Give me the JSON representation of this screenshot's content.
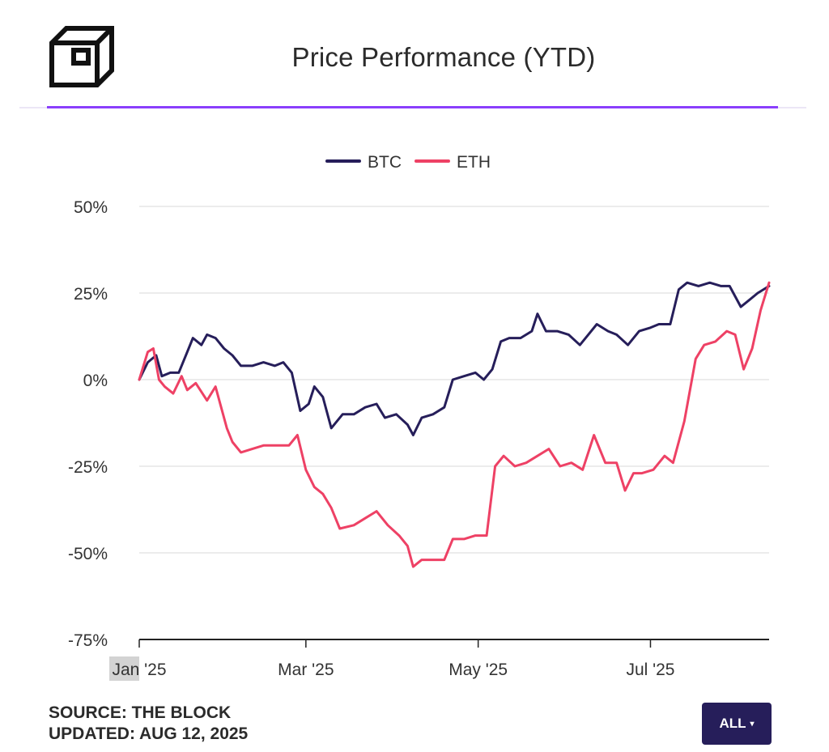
{
  "header": {
    "title": "Price Performance (YTD)"
  },
  "footer": {
    "source": "SOURCE: THE BLOCK",
    "updated": "UPDATED: AUG 12, 2025"
  },
  "range_button": {
    "label": "ALL",
    "caret": "▾"
  },
  "logo": {
    "icon": "the-block-cube-logo"
  },
  "colors": {
    "btc": "#261e5a",
    "eth": "#ee4165",
    "accent": "#8a3ffc",
    "grid": "#e6e6e6",
    "axis": "#222222"
  },
  "chart_data": {
    "type": "line",
    "title": "Price Performance (YTD)",
    "y_unit": "%",
    "ylim": [
      -75,
      50
    ],
    "y_ticks": [
      50,
      25,
      0,
      -25,
      -50,
      -75
    ],
    "y_tick_labels": [
      "50%",
      "25%",
      "0%",
      "-25%",
      "-50%",
      "-75%"
    ],
    "xlim": [
      "2025-01-01",
      "2025-08-12"
    ],
    "x_ticks": [
      "2025-01-01",
      "2025-03-01",
      "2025-05-01",
      "2025-07-01"
    ],
    "x_tick_labels": [
      "Jan '25",
      "Mar '25",
      "May '25",
      "Jul '25"
    ],
    "grid": true,
    "legend_position": "top-center",
    "series": [
      {
        "name": "BTC",
        "color": "#261e5a",
        "points": [
          [
            "2025-01-01",
            0
          ],
          [
            "2025-01-04",
            5
          ],
          [
            "2025-01-07",
            7
          ],
          [
            "2025-01-09",
            1
          ],
          [
            "2025-01-12",
            2
          ],
          [
            "2025-01-15",
            2
          ],
          [
            "2025-01-18",
            8
          ],
          [
            "2025-01-20",
            12
          ],
          [
            "2025-01-23",
            10
          ],
          [
            "2025-01-25",
            13
          ],
          [
            "2025-01-28",
            12
          ],
          [
            "2025-01-31",
            9
          ],
          [
            "2025-02-03",
            7
          ],
          [
            "2025-02-06",
            4
          ],
          [
            "2025-02-10",
            4
          ],
          [
            "2025-02-14",
            5
          ],
          [
            "2025-02-18",
            4
          ],
          [
            "2025-02-21",
            5
          ],
          [
            "2025-02-24",
            2
          ],
          [
            "2025-02-27",
            -9
          ],
          [
            "2025-03-02",
            -7
          ],
          [
            "2025-03-04",
            -2
          ],
          [
            "2025-03-07",
            -5
          ],
          [
            "2025-03-10",
            -14
          ],
          [
            "2025-03-14",
            -10
          ],
          [
            "2025-03-18",
            -10
          ],
          [
            "2025-03-22",
            -8
          ],
          [
            "2025-03-26",
            -7
          ],
          [
            "2025-03-29",
            -11
          ],
          [
            "2025-04-02",
            -10
          ],
          [
            "2025-04-06",
            -13
          ],
          [
            "2025-04-08",
            -16
          ],
          [
            "2025-04-11",
            -11
          ],
          [
            "2025-04-15",
            -10
          ],
          [
            "2025-04-19",
            -8
          ],
          [
            "2025-04-22",
            0
          ],
          [
            "2025-04-26",
            1
          ],
          [
            "2025-04-30",
            2
          ],
          [
            "2025-05-03",
            0
          ],
          [
            "2025-05-06",
            3
          ],
          [
            "2025-05-09",
            11
          ],
          [
            "2025-05-12",
            12
          ],
          [
            "2025-05-16",
            12
          ],
          [
            "2025-05-20",
            14
          ],
          [
            "2025-05-22",
            19
          ],
          [
            "2025-05-25",
            14
          ],
          [
            "2025-05-29",
            14
          ],
          [
            "2025-06-02",
            13
          ],
          [
            "2025-06-06",
            10
          ],
          [
            "2025-06-09",
            13
          ],
          [
            "2025-06-12",
            16
          ],
          [
            "2025-06-16",
            14
          ],
          [
            "2025-06-19",
            13
          ],
          [
            "2025-06-23",
            10
          ],
          [
            "2025-06-27",
            14
          ],
          [
            "2025-07-01",
            15
          ],
          [
            "2025-07-04",
            16
          ],
          [
            "2025-07-08",
            16
          ],
          [
            "2025-07-11",
            26
          ],
          [
            "2025-07-14",
            28
          ],
          [
            "2025-07-18",
            27
          ],
          [
            "2025-07-22",
            28
          ],
          [
            "2025-07-26",
            27
          ],
          [
            "2025-07-29",
            27
          ],
          [
            "2025-08-02",
            21
          ],
          [
            "2025-08-05",
            23
          ],
          [
            "2025-08-08",
            25
          ],
          [
            "2025-08-12",
            27
          ]
        ]
      },
      {
        "name": "ETH",
        "color": "#ee4165",
        "points": [
          [
            "2025-01-01",
            0
          ],
          [
            "2025-01-04",
            8
          ],
          [
            "2025-01-06",
            9
          ],
          [
            "2025-01-08",
            0
          ],
          [
            "2025-01-10",
            -2
          ],
          [
            "2025-01-13",
            -4
          ],
          [
            "2025-01-16",
            1
          ],
          [
            "2025-01-18",
            -3
          ],
          [
            "2025-01-21",
            -1
          ],
          [
            "2025-01-25",
            -6
          ],
          [
            "2025-01-28",
            -2
          ],
          [
            "2025-02-01",
            -14
          ],
          [
            "2025-02-03",
            -18
          ],
          [
            "2025-02-06",
            -21
          ],
          [
            "2025-02-10",
            -20
          ],
          [
            "2025-02-14",
            -19
          ],
          [
            "2025-02-19",
            -19
          ],
          [
            "2025-02-23",
            -19
          ],
          [
            "2025-02-26",
            -16
          ],
          [
            "2025-03-01",
            -26
          ],
          [
            "2025-03-04",
            -31
          ],
          [
            "2025-03-07",
            -33
          ],
          [
            "2025-03-10",
            -37
          ],
          [
            "2025-03-13",
            -43
          ],
          [
            "2025-03-18",
            -42
          ],
          [
            "2025-03-22",
            -40
          ],
          [
            "2025-03-26",
            -38
          ],
          [
            "2025-03-30",
            -42
          ],
          [
            "2025-04-03",
            -45
          ],
          [
            "2025-04-06",
            -48
          ],
          [
            "2025-04-08",
            -54
          ],
          [
            "2025-04-11",
            -52
          ],
          [
            "2025-04-15",
            -52
          ],
          [
            "2025-04-19",
            -52
          ],
          [
            "2025-04-22",
            -46
          ],
          [
            "2025-04-26",
            -46
          ],
          [
            "2025-04-30",
            -45
          ],
          [
            "2025-05-04",
            -45
          ],
          [
            "2025-05-07",
            -25
          ],
          [
            "2025-05-10",
            -22
          ],
          [
            "2025-05-14",
            -25
          ],
          [
            "2025-05-18",
            -24
          ],
          [
            "2025-05-22",
            -22
          ],
          [
            "2025-05-26",
            -20
          ],
          [
            "2025-05-30",
            -25
          ],
          [
            "2025-06-03",
            -24
          ],
          [
            "2025-06-07",
            -26
          ],
          [
            "2025-06-11",
            -16
          ],
          [
            "2025-06-15",
            -24
          ],
          [
            "2025-06-19",
            -24
          ],
          [
            "2025-06-22",
            -32
          ],
          [
            "2025-06-25",
            -27
          ],
          [
            "2025-06-28",
            -27
          ],
          [
            "2025-07-02",
            -26
          ],
          [
            "2025-07-06",
            -22
          ],
          [
            "2025-07-09",
            -24
          ],
          [
            "2025-07-13",
            -12
          ],
          [
            "2025-07-17",
            6
          ],
          [
            "2025-07-20",
            10
          ],
          [
            "2025-07-24",
            11
          ],
          [
            "2025-07-28",
            14
          ],
          [
            "2025-07-31",
            13
          ],
          [
            "2025-08-03",
            3
          ],
          [
            "2025-08-06",
            9
          ],
          [
            "2025-08-09",
            20
          ],
          [
            "2025-08-12",
            28
          ]
        ]
      }
    ]
  }
}
